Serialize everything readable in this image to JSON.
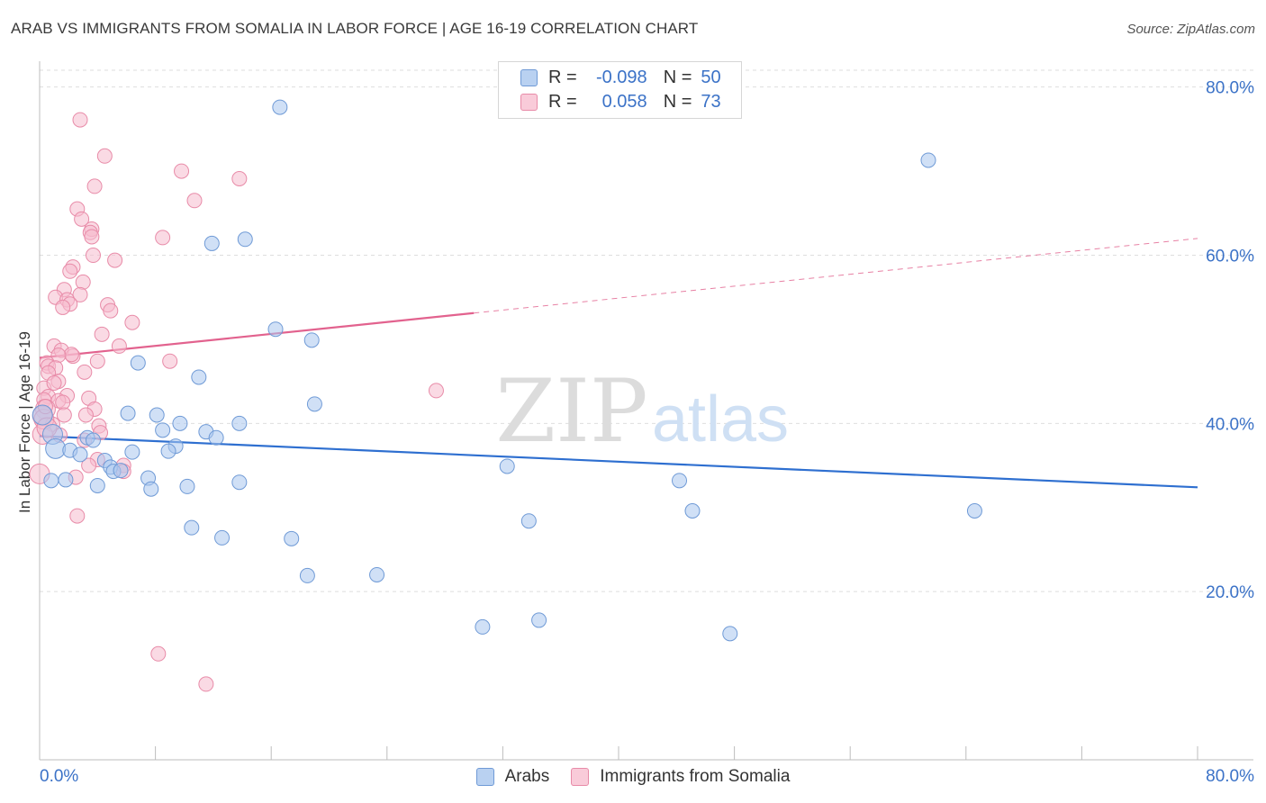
{
  "title": "ARAB VS IMMIGRANTS FROM SOMALIA IN LABOR FORCE | AGE 16-19 CORRELATION CHART",
  "source": "Source: ZipAtlas.com",
  "watermark": {
    "zip": "ZIP",
    "atlas": "atlas"
  },
  "stats": {
    "arabs": {
      "r_label": "R =",
      "r_value": "-0.098",
      "n_label": "N =",
      "n_value": "50"
    },
    "somalia": {
      "r_label": "R =",
      "r_value": "0.058",
      "n_label": "N =",
      "n_value": "73"
    }
  },
  "legend": {
    "arabs": "Arabs",
    "somalia": "Immigrants from Somalia"
  },
  "x_axis": {
    "min_label": "0.0%",
    "max_label": "80.0%"
  },
  "colors": {
    "arabs_fill": "#a9c6ee",
    "arabs_stroke": "#6f9ad6",
    "arabs_line": "#2e6fd0",
    "somalia_fill": "#f6bccd",
    "somalia_stroke": "#e88ba8",
    "somalia_line": "#e2628e",
    "axis_label": "#3b72c7"
  },
  "chart_data": {
    "type": "scatter",
    "title": "ARAB VS IMMIGRANTS FROM SOMALIA IN LABOR FORCE | AGE 16-19 CORRELATION CHART",
    "xlabel": "",
    "ylabel": "In Labor Force | Age 16-19",
    "xlim": [
      0,
      80
    ],
    "ylim": [
      0,
      82
    ],
    "y_ticks": [
      20,
      40,
      60,
      80
    ],
    "y_tick_labels": [
      "20.0%",
      "40.0%",
      "60.0%",
      "80.0%"
    ],
    "grid": true,
    "series": [
      {
        "name": "Arabs",
        "r": -0.098,
        "n": 50,
        "trend": {
          "x0": 0,
          "y0": 38.5,
          "x1": 80,
          "y1": 32.4,
          "dashed_from": null
        },
        "points": [
          [
            16.6,
            77.6
          ],
          [
            61.4,
            71.3
          ],
          [
            11.9,
            61.4
          ],
          [
            14.2,
            61.9
          ],
          [
            16.3,
            51.2
          ],
          [
            18.8,
            49.9
          ],
          [
            6.8,
            47.2
          ],
          [
            11.0,
            45.5
          ],
          [
            19.0,
            42.3
          ],
          [
            0.2,
            41.0
          ],
          [
            6.1,
            41.2
          ],
          [
            8.1,
            41.0
          ],
          [
            9.7,
            40.0
          ],
          [
            13.8,
            40.0
          ],
          [
            8.5,
            39.2
          ],
          [
            11.5,
            39.0
          ],
          [
            12.2,
            38.3
          ],
          [
            0.9,
            38.7
          ],
          [
            3.3,
            38.3
          ],
          [
            3.7,
            38.0
          ],
          [
            9.4,
            37.3
          ],
          [
            1.1,
            37.0
          ],
          [
            2.1,
            36.8
          ],
          [
            8.9,
            36.7
          ],
          [
            2.8,
            36.3
          ],
          [
            6.4,
            36.6
          ],
          [
            4.5,
            35.6
          ],
          [
            4.9,
            34.8
          ],
          [
            5.1,
            34.3
          ],
          [
            5.6,
            34.4
          ],
          [
            0.8,
            33.2
          ],
          [
            7.5,
            33.5
          ],
          [
            1.8,
            33.3
          ],
          [
            4.0,
            32.6
          ],
          [
            7.7,
            32.2
          ],
          [
            10.2,
            32.5
          ],
          [
            13.8,
            33.0
          ],
          [
            32.3,
            34.9
          ],
          [
            44.2,
            33.2
          ],
          [
            45.1,
            29.6
          ],
          [
            64.6,
            29.6
          ],
          [
            33.8,
            28.4
          ],
          [
            10.5,
            27.6
          ],
          [
            12.6,
            26.4
          ],
          [
            17.4,
            26.3
          ],
          [
            18.5,
            21.9
          ],
          [
            23.3,
            22.0
          ],
          [
            30.6,
            15.8
          ],
          [
            34.5,
            16.6
          ],
          [
            47.7,
            15.0
          ]
        ]
      },
      {
        "name": "Immigrants from Somalia",
        "r": 0.058,
        "n": 73,
        "trend": {
          "x0": 0,
          "y0": 47.8,
          "x1": 80,
          "y1": 62.0,
          "dashed_from": 30
        },
        "points": [
          [
            2.8,
            76.1
          ],
          [
            4.5,
            71.8
          ],
          [
            9.8,
            70.0
          ],
          [
            13.8,
            69.1
          ],
          [
            3.8,
            68.2
          ],
          [
            10.7,
            66.5
          ],
          [
            2.6,
            65.5
          ],
          [
            2.9,
            64.3
          ],
          [
            3.6,
            63.1
          ],
          [
            3.5,
            62.7
          ],
          [
            8.5,
            62.1
          ],
          [
            3.6,
            62.2
          ],
          [
            3.7,
            60.0
          ],
          [
            5.2,
            59.4
          ],
          [
            2.3,
            58.6
          ],
          [
            2.1,
            58.1
          ],
          [
            3.0,
            56.8
          ],
          [
            1.7,
            55.9
          ],
          [
            2.8,
            55.3
          ],
          [
            1.1,
            55.0
          ],
          [
            1.9,
            54.7
          ],
          [
            2.1,
            54.2
          ],
          [
            1.6,
            53.8
          ],
          [
            4.7,
            54.1
          ],
          [
            4.9,
            53.4
          ],
          [
            6.4,
            52.0
          ],
          [
            4.3,
            50.6
          ],
          [
            1.0,
            49.2
          ],
          [
            5.5,
            49.2
          ],
          [
            1.5,
            48.7
          ],
          [
            2.3,
            48.0
          ],
          [
            2.2,
            48.2
          ],
          [
            1.3,
            48.1
          ],
          [
            0.5,
            47.2
          ],
          [
            0.6,
            46.8
          ],
          [
            4.0,
            47.4
          ],
          [
            9.0,
            47.4
          ],
          [
            1.1,
            46.6
          ],
          [
            0.6,
            46.0
          ],
          [
            3.1,
            46.1
          ],
          [
            1.3,
            45.0
          ],
          [
            0.3,
            44.2
          ],
          [
            1.0,
            44.8
          ],
          [
            27.4,
            43.9
          ],
          [
            1.9,
            43.3
          ],
          [
            0.6,
            43.2
          ],
          [
            3.4,
            43.0
          ],
          [
            0.3,
            42.8
          ],
          [
            1.3,
            42.7
          ],
          [
            1.6,
            42.5
          ],
          [
            0.4,
            41.7
          ],
          [
            3.8,
            41.7
          ],
          [
            0.2,
            40.9
          ],
          [
            1.7,
            41.0
          ],
          [
            3.2,
            41.0
          ],
          [
            0.9,
            39.9
          ],
          [
            4.1,
            39.7
          ],
          [
            4.2,
            38.9
          ],
          [
            0.2,
            38.7
          ],
          [
            3.1,
            38.0
          ],
          [
            1.4,
            38.6
          ],
          [
            4.0,
            35.7
          ],
          [
            3.4,
            35.0
          ],
          [
            5.8,
            35.0
          ],
          [
            5.8,
            34.3
          ],
          [
            0.0,
            34.0
          ],
          [
            2.5,
            33.6
          ],
          [
            2.6,
            29.0
          ],
          [
            8.2,
            12.6
          ],
          [
            11.5,
            9.0
          ],
          [
            0.3,
            40.5
          ],
          [
            0.5,
            39.5
          ],
          [
            0.4,
            42.0
          ]
        ]
      }
    ]
  }
}
